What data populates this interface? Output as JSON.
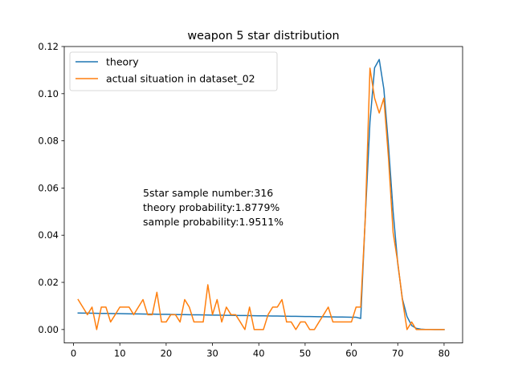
{
  "chart_data": {
    "type": "line",
    "title": "weapon 5 star distribution",
    "xlabel": "",
    "ylabel": "",
    "xlim": [
      -2,
      84
    ],
    "ylim": [
      -0.0057,
      0.12
    ],
    "xticks": [
      0,
      10,
      20,
      30,
      40,
      50,
      60,
      70,
      80
    ],
    "yticks": [
      0.0,
      0.02,
      0.04,
      0.06,
      0.08,
      0.1,
      0.12
    ],
    "ytick_labels": [
      "0.00",
      "0.02",
      "0.04",
      "0.06",
      "0.08",
      "0.10",
      "0.12"
    ],
    "grid": false,
    "legend": "upper-left",
    "annotation": {
      "x": 15,
      "lines": [
        "5star sample number:316",
        "theory probability:1.8779%",
        "sample probability:1.9511%"
      ]
    },
    "series": [
      {
        "name": "theory",
        "color": "#1f77b4",
        "x": [
          1,
          2,
          3,
          4,
          5,
          6,
          7,
          8,
          9,
          10,
          11,
          12,
          13,
          14,
          15,
          16,
          17,
          18,
          19,
          20,
          21,
          22,
          23,
          24,
          25,
          26,
          27,
          28,
          29,
          30,
          31,
          32,
          33,
          34,
          35,
          36,
          37,
          38,
          39,
          40,
          41,
          42,
          43,
          44,
          45,
          46,
          47,
          48,
          49,
          50,
          51,
          52,
          53,
          54,
          55,
          56,
          57,
          58,
          59,
          60,
          61,
          62,
          63,
          64,
          65,
          66,
          67,
          68,
          69,
          70,
          71,
          72,
          73,
          74,
          75,
          76,
          77,
          78,
          79,
          80
        ],
        "values": [
          0.007,
          0.00697,
          0.00694,
          0.00691,
          0.00688,
          0.00685,
          0.00682,
          0.00679,
          0.00676,
          0.00673,
          0.0067,
          0.00667,
          0.00664,
          0.00661,
          0.00658,
          0.00655,
          0.00652,
          0.00649,
          0.00646,
          0.00643,
          0.0064,
          0.00637,
          0.00634,
          0.00631,
          0.00628,
          0.00625,
          0.00622,
          0.00619,
          0.00616,
          0.00613,
          0.0061,
          0.00607,
          0.00604,
          0.00601,
          0.00598,
          0.00595,
          0.00592,
          0.00589,
          0.00586,
          0.00583,
          0.0058,
          0.00577,
          0.00574,
          0.00571,
          0.00568,
          0.00565,
          0.00562,
          0.00559,
          0.00556,
          0.00553,
          0.0055,
          0.00547,
          0.00544,
          0.00541,
          0.00538,
          0.00535,
          0.00532,
          0.00529,
          0.00526,
          0.00523,
          0.0052,
          0.0047,
          0.048,
          0.088,
          0.111,
          0.1145,
          0.102,
          0.078,
          0.05,
          0.028,
          0.013,
          0.0055,
          0.0017,
          0.0005,
          0.00015,
          4e-05,
          1e-05,
          0.0,
          0.0,
          0.0
        ]
      },
      {
        "name": "actual situation in dataset_02",
        "color": "#ff7f0e",
        "x": [
          1,
          2,
          3,
          4,
          5,
          6,
          7,
          8,
          9,
          10,
          11,
          12,
          13,
          14,
          15,
          16,
          17,
          18,
          19,
          20,
          21,
          22,
          23,
          24,
          25,
          26,
          27,
          28,
          29,
          30,
          31,
          32,
          33,
          34,
          35,
          36,
          37,
          38,
          39,
          40,
          41,
          42,
          43,
          44,
          45,
          46,
          47,
          48,
          49,
          50,
          51,
          52,
          53,
          54,
          55,
          56,
          57,
          58,
          59,
          60,
          61,
          62,
          63,
          64,
          65,
          66,
          67,
          68,
          69,
          70,
          71,
          72,
          73,
          74,
          75,
          76,
          77,
          78,
          79,
          80
        ],
        "values": [
          0.0127,
          0.0095,
          0.0063,
          0.0095,
          0.0,
          0.0095,
          0.0095,
          0.0032,
          0.0063,
          0.0095,
          0.0095,
          0.0095,
          0.0063,
          0.0095,
          0.0127,
          0.0063,
          0.0063,
          0.0158,
          0.0032,
          0.0032,
          0.0063,
          0.0063,
          0.0032,
          0.0127,
          0.0095,
          0.0032,
          0.0032,
          0.0032,
          0.019,
          0.0063,
          0.0127,
          0.0032,
          0.0095,
          0.0063,
          0.0063,
          0.0032,
          0.0,
          0.0095,
          0.0,
          0.0,
          0.0,
          0.0063,
          0.0095,
          0.0095,
          0.0127,
          0.0032,
          0.0032,
          0.0,
          0.0032,
          0.0032,
          0.0,
          0.0,
          0.0032,
          0.0063,
          0.0095,
          0.0032,
          0.0032,
          0.0032,
          0.0032,
          0.0032,
          0.0095,
          0.0095,
          0.0475,
          0.1108,
          0.0981,
          0.0918,
          0.0981,
          0.0728,
          0.0411,
          0.0285,
          0.0127,
          0.0,
          0.0032,
          0.0,
          0.0,
          0.0,
          0.0,
          0.0,
          0.0,
          0.0
        ]
      }
    ]
  }
}
